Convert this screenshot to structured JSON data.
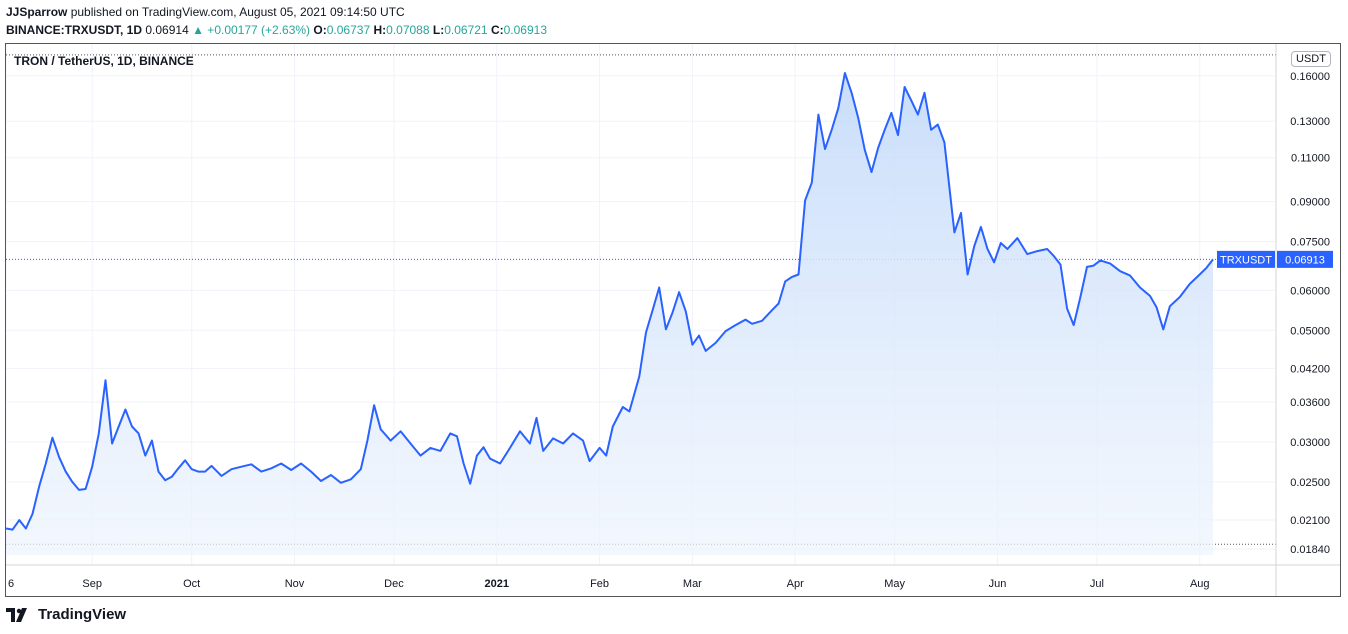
{
  "header": {
    "author": "JJSparrow",
    "published": " published on TradingView.com, August 05, 2021 09:14:50 UTC",
    "symbol": "BINANCE:TRXUSDT, 1D",
    "last": "0.06914",
    "change": "▲ +0.00177 (+2.63%)",
    "o_label": "O:",
    "o_val": "0.06737",
    "h_label": "H:",
    "h_val": "0.07088",
    "l_label": "L:",
    "l_val": "0.06721",
    "c_label": "C:",
    "c_val": "0.06913"
  },
  "legend_title": "TRON / TetherUS, 1D, BINANCE",
  "unit_label": "USDT",
  "price_tag": {
    "symbol": "TRXUSDT",
    "value": "0.06913"
  },
  "footer_brand": "TradingView",
  "colors": {
    "line": "#2962ff",
    "area_top": "#cfe1fb",
    "tag": "#2962ff",
    "bg": "#ffffff"
  },
  "chart_data": {
    "type": "area",
    "title": "TRON / TetherUS, 1D, BINANCE",
    "scale": "log",
    "y_ticks": [
      0.0184,
      0.021,
      0.025,
      0.03,
      0.036,
      0.042,
      0.05,
      0.06,
      0.075,
      0.09,
      0.11,
      0.13,
      0.16
    ],
    "y_tick_labels": [
      "0.01840",
      "0.02100",
      "0.02500",
      "0.03000",
      "0.03600",
      "0.04200",
      "0.05000",
      "0.06000",
      "0.07500",
      "0.09000",
      "0.11000",
      "0.13000",
      "0.16000"
    ],
    "x_ticks": [
      {
        "label": "6",
        "date": "2020-08-06"
      },
      {
        "label": "Sep",
        "date": "2020-09-01"
      },
      {
        "label": "Oct",
        "date": "2020-10-01"
      },
      {
        "label": "Nov",
        "date": "2020-11-01"
      },
      {
        "label": "Dec",
        "date": "2020-12-01"
      },
      {
        "label": "2021",
        "date": "2021-01-01"
      },
      {
        "label": "Feb",
        "date": "2021-02-01"
      },
      {
        "label": "Mar",
        "date": "2021-03-01"
      },
      {
        "label": "Apr",
        "date": "2021-04-01"
      },
      {
        "label": "May",
        "date": "2021-05-01"
      },
      {
        "label": "Jun",
        "date": "2021-06-01"
      },
      {
        "label": "Jul",
        "date": "2021-07-01"
      },
      {
        "label": "Aug",
        "date": "2021-08-01"
      }
    ],
    "x_range": [
      "2020-08-06",
      "2021-08-24"
    ],
    "ylim": [
      0.0171,
      0.185
    ],
    "dotted_levels": [
      0.176,
      0.0188
    ],
    "last_value": 0.06913,
    "series": [
      {
        "points": [
          [
            "2020-08-06",
            0.0202
          ],
          [
            "2020-08-08",
            0.0201
          ],
          [
            "2020-08-10",
            0.021
          ],
          [
            "2020-08-12",
            0.0202
          ],
          [
            "2020-08-14",
            0.0216
          ],
          [
            "2020-08-16",
            0.0245
          ],
          [
            "2020-08-18",
            0.0272
          ],
          [
            "2020-08-20",
            0.0306
          ],
          [
            "2020-08-22",
            0.028
          ],
          [
            "2020-08-24",
            0.0262
          ],
          [
            "2020-08-26",
            0.025
          ],
          [
            "2020-08-28",
            0.0241
          ],
          [
            "2020-08-30",
            0.0242
          ],
          [
            "2020-09-01",
            0.0268
          ],
          [
            "2020-09-03",
            0.0312
          ],
          [
            "2020-09-05",
            0.0398
          ],
          [
            "2020-09-07",
            0.0298
          ],
          [
            "2020-09-09",
            0.0322
          ],
          [
            "2020-09-11",
            0.0348
          ],
          [
            "2020-09-13",
            0.0322
          ],
          [
            "2020-09-15",
            0.0312
          ],
          [
            "2020-09-17",
            0.0282
          ],
          [
            "2020-09-19",
            0.0302
          ],
          [
            "2020-09-21",
            0.0262
          ],
          [
            "2020-09-23",
            0.0252
          ],
          [
            "2020-09-25",
            0.0256
          ],
          [
            "2020-09-27",
            0.0266
          ],
          [
            "2020-09-29",
            0.0276
          ],
          [
            "2020-10-01",
            0.0265
          ],
          [
            "2020-10-03",
            0.0262
          ],
          [
            "2020-10-05",
            0.0262
          ],
          [
            "2020-10-07",
            0.0269
          ],
          [
            "2020-10-10",
            0.0257
          ],
          [
            "2020-10-13",
            0.0265
          ],
          [
            "2020-10-16",
            0.0268
          ],
          [
            "2020-10-19",
            0.0271
          ],
          [
            "2020-10-22",
            0.0262
          ],
          [
            "2020-10-25",
            0.0266
          ],
          [
            "2020-10-28",
            0.0272
          ],
          [
            "2020-10-31",
            0.0264
          ],
          [
            "2020-11-03",
            0.0272
          ],
          [
            "2020-11-06",
            0.0262
          ],
          [
            "2020-11-09",
            0.0251
          ],
          [
            "2020-11-12",
            0.0258
          ],
          [
            "2020-11-15",
            0.0249
          ],
          [
            "2020-11-18",
            0.0253
          ],
          [
            "2020-11-21",
            0.0265
          ],
          [
            "2020-11-23",
            0.0302
          ],
          [
            "2020-11-25",
            0.0355
          ],
          [
            "2020-11-27",
            0.0318
          ],
          [
            "2020-11-30",
            0.0302
          ],
          [
            "2020-12-03",
            0.0315
          ],
          [
            "2020-12-06",
            0.0298
          ],
          [
            "2020-12-09",
            0.0282
          ],
          [
            "2020-12-12",
            0.0292
          ],
          [
            "2020-12-15",
            0.0288
          ],
          [
            "2020-12-18",
            0.0312
          ],
          [
            "2020-12-20",
            0.0308
          ],
          [
            "2020-12-22",
            0.0272
          ],
          [
            "2020-12-24",
            0.0248
          ],
          [
            "2020-12-26",
            0.0282
          ],
          [
            "2020-12-28",
            0.0293
          ],
          [
            "2020-12-30",
            0.0278
          ],
          [
            "2021-01-02",
            0.0272
          ],
          [
            "2021-01-05",
            0.0292
          ],
          [
            "2021-01-08",
            0.0315
          ],
          [
            "2021-01-11",
            0.0298
          ],
          [
            "2021-01-13",
            0.0335
          ],
          [
            "2021-01-15",
            0.0288
          ],
          [
            "2021-01-18",
            0.0305
          ],
          [
            "2021-01-21",
            0.0298
          ],
          [
            "2021-01-24",
            0.0312
          ],
          [
            "2021-01-27",
            0.0302
          ],
          [
            "2021-01-29",
            0.0275
          ],
          [
            "2021-02-01",
            0.0292
          ],
          [
            "2021-02-03",
            0.0282
          ],
          [
            "2021-02-05",
            0.0322
          ],
          [
            "2021-02-08",
            0.0352
          ],
          [
            "2021-02-10",
            0.0345
          ],
          [
            "2021-02-13",
            0.0405
          ],
          [
            "2021-02-15",
            0.0495
          ],
          [
            "2021-02-17",
            0.0548
          ],
          [
            "2021-02-19",
            0.0608
          ],
          [
            "2021-02-21",
            0.0502
          ],
          [
            "2021-02-23",
            0.0542
          ],
          [
            "2021-02-25",
            0.0595
          ],
          [
            "2021-02-27",
            0.0545
          ],
          [
            "2021-03-01",
            0.0468
          ],
          [
            "2021-03-03",
            0.0488
          ],
          [
            "2021-03-05",
            0.0455
          ],
          [
            "2021-03-08",
            0.0472
          ],
          [
            "2021-03-11",
            0.0498
          ],
          [
            "2021-03-14",
            0.0512
          ],
          [
            "2021-03-17",
            0.0525
          ],
          [
            "2021-03-19",
            0.0515
          ],
          [
            "2021-03-22",
            0.0522
          ],
          [
            "2021-03-25",
            0.0548
          ],
          [
            "2021-03-27",
            0.0565
          ],
          [
            "2021-03-29",
            0.0625
          ],
          [
            "2021-03-31",
            0.0638
          ],
          [
            "2021-04-02",
            0.0645
          ],
          [
            "2021-04-04",
            0.0905
          ],
          [
            "2021-04-06",
            0.0982
          ],
          [
            "2021-04-08",
            0.134
          ],
          [
            "2021-04-10",
            0.1145
          ],
          [
            "2021-04-12",
            0.125
          ],
          [
            "2021-04-14",
            0.138
          ],
          [
            "2021-04-16",
            0.162
          ],
          [
            "2021-04-18",
            0.148
          ],
          [
            "2021-04-20",
            0.132
          ],
          [
            "2021-04-22",
            0.114
          ],
          [
            "2021-04-24",
            0.103
          ],
          [
            "2021-04-26",
            0.115
          ],
          [
            "2021-04-28",
            0.125
          ],
          [
            "2021-04-30",
            0.135
          ],
          [
            "2021-05-02",
            0.122
          ],
          [
            "2021-05-04",
            0.152
          ],
          [
            "2021-05-06",
            0.143
          ],
          [
            "2021-05-08",
            0.134
          ],
          [
            "2021-05-10",
            0.148
          ],
          [
            "2021-05-12",
            0.125
          ],
          [
            "2021-05-14",
            0.128
          ],
          [
            "2021-05-16",
            0.118
          ],
          [
            "2021-05-19",
            0.0782
          ],
          [
            "2021-05-21",
            0.0855
          ],
          [
            "2021-05-23",
            0.0645
          ],
          [
            "2021-05-25",
            0.0735
          ],
          [
            "2021-05-27",
            0.0802
          ],
          [
            "2021-05-29",
            0.0725
          ],
          [
            "2021-05-31",
            0.0682
          ],
          [
            "2021-06-02",
            0.0745
          ],
          [
            "2021-06-04",
            0.0725
          ],
          [
            "2021-06-07",
            0.0762
          ],
          [
            "2021-06-10",
            0.0708
          ],
          [
            "2021-06-13",
            0.0718
          ],
          [
            "2021-06-16",
            0.0725
          ],
          [
            "2021-06-18",
            0.0702
          ],
          [
            "2021-06-20",
            0.0675
          ],
          [
            "2021-06-22",
            0.0552
          ],
          [
            "2021-06-24",
            0.0512
          ],
          [
            "2021-06-26",
            0.0582
          ],
          [
            "2021-06-28",
            0.0668
          ],
          [
            "2021-06-30",
            0.0672
          ],
          [
            "2021-07-02",
            0.0688
          ],
          [
            "2021-07-05",
            0.0678
          ],
          [
            "2021-07-08",
            0.0655
          ],
          [
            "2021-07-11",
            0.0642
          ],
          [
            "2021-07-14",
            0.0608
          ],
          [
            "2021-07-17",
            0.0585
          ],
          [
            "2021-07-19",
            0.0555
          ],
          [
            "2021-07-21",
            0.0502
          ],
          [
            "2021-07-23",
            0.0558
          ],
          [
            "2021-07-26",
            0.0582
          ],
          [
            "2021-07-29",
            0.0618
          ],
          [
            "2021-08-01",
            0.0645
          ],
          [
            "2021-08-03",
            0.0665
          ],
          [
            "2021-08-05",
            0.06913
          ]
        ]
      }
    ]
  }
}
